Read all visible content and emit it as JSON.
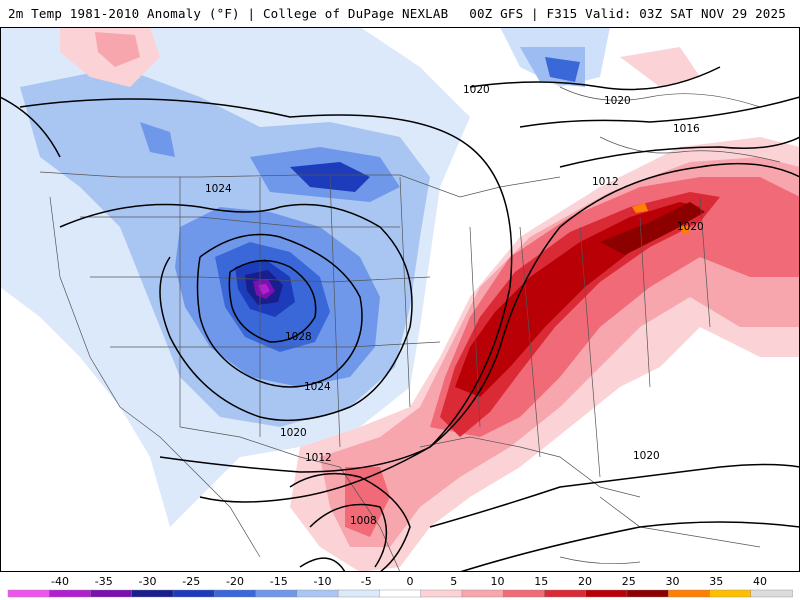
{
  "header": {
    "left_title": "2m Temp 1981-2010 Anomaly (°F) | College of DuPage NEXLAB",
    "right_title": "00Z GFS | F315 Valid: 03Z SAT NOV 29 2025"
  },
  "isobars": {
    "labels": [
      "1020",
      "1020",
      "1016",
      "1012",
      "1020",
      "1024",
      "1028",
      "1024",
      "1020",
      "1012",
      "1020",
      "1008"
    ]
  },
  "colorbar": {
    "ticks": [
      "-40",
      "-35",
      "-30",
      "-25",
      "-20",
      "-15",
      "-10",
      "-5",
      "0",
      "5",
      "10",
      "15",
      "20",
      "25",
      "30",
      "35",
      "40"
    ],
    "colors": [
      "#ee55ee",
      "#b020d0",
      "#7a10b0",
      "#181f8c",
      "#1c3cbc",
      "#3a68d8",
      "#6f98ea",
      "#a9c6f3",
      "#dce9fb",
      "#ffffff",
      "#fbd2d6",
      "#f7a6ae",
      "#f06a77",
      "#d92a36",
      "#b80006",
      "#8c0000",
      "#ff7f00",
      "#ffbf00",
      "#dcdcdc"
    ]
  },
  "colors": {
    "cold_light": "#cfe0fa",
    "cold_mid": "#9dbcf2",
    "cold_strong": "#5c86e0",
    "cold_deep": "#2346c0",
    "warm_light": "#fbd2d6",
    "warm_mid": "#f59aa4",
    "warm_strong": "#e8454f",
    "warm_deep": "#c00008",
    "warm_darkest": "#8a0000"
  }
}
